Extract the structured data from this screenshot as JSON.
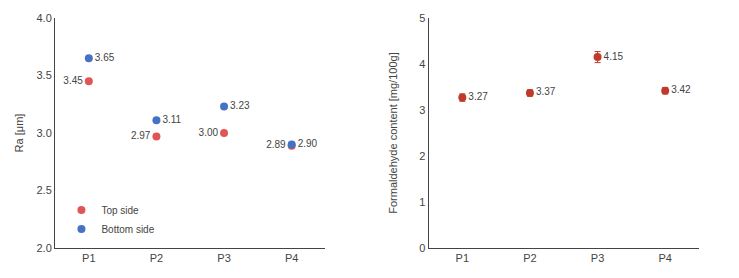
{
  "chart_data": [
    {
      "type": "scatter",
      "categories": [
        "P1",
        "P2",
        "P3",
        "P4"
      ],
      "series": [
        {
          "name": "Top side",
          "color": "#e05555",
          "values": [
            3.45,
            2.97,
            3.0,
            2.89
          ],
          "value_labels": [
            "3.45",
            "2.97",
            "3.00",
            "2.89"
          ]
        },
        {
          "name": "Bottom side",
          "color": "#4472c4",
          "values": [
            3.65,
            3.11,
            3.23,
            2.9
          ],
          "value_labels": [
            "3.65",
            "3.11",
            "3.23",
            "2.90"
          ]
        }
      ],
      "ylabel": "Ra [μm]",
      "ylim": [
        2.0,
        4.0
      ],
      "yticks": [
        {
          "value": 2.0,
          "label": "2.0"
        },
        2.5,
        {
          "value": 3.0,
          "label": "3.0"
        },
        3.5,
        {
          "value": 4.0,
          "label": "4.0"
        }
      ],
      "legend": "lower left",
      "data_labels": true,
      "grid": false
    },
    {
      "type": "scatter",
      "categories": [
        "P1",
        "P2",
        "P3",
        "P4"
      ],
      "values": [
        3.27,
        3.37,
        4.15,
        3.42
      ],
      "errors": [
        0.08,
        0.07,
        0.12,
        0.07
      ],
      "color": "#c0392b",
      "ylabel": "Formaldehyde content [mg/100g]",
      "ylim": [
        0,
        5
      ],
      "yticks": [
        0,
        1,
        2,
        3,
        4,
        5
      ],
      "data_labels": true,
      "grid": false
    }
  ]
}
